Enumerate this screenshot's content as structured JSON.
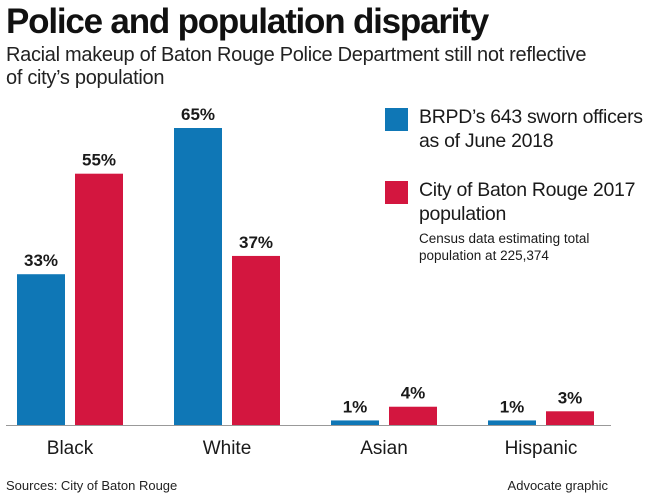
{
  "colors": {
    "officers": "#0f77b6",
    "population": "#d3163f",
    "axis": "#999999"
  },
  "header": {
    "title": "Police and population disparity",
    "subtitle": "Racial makeup of Baton Rouge Police Department still not reflective of city’s population"
  },
  "legend": {
    "series1_label": "BRPD’s 643 sworn officers as of June 2018",
    "series2_label": "City of Baton Rouge 2017 population",
    "series2_note": "Census data estimating total population at 225,374"
  },
  "footer": {
    "source": "Sources: City of Baton Rouge",
    "credit": "Advocate graphic"
  },
  "chart_data": {
    "type": "bar",
    "categories": [
      "Black",
      "White",
      "Asian",
      "Hispanic"
    ],
    "series": [
      {
        "name": "BRPD’s 643 sworn officers as of June 2018",
        "values": [
          33,
          65,
          1,
          1
        ],
        "labels": [
          "33%",
          "65%",
          "1%",
          "1%"
        ]
      },
      {
        "name": "City of Baton Rouge 2017 population",
        "values": [
          55,
          37,
          4,
          3
        ],
        "labels": [
          "55%",
          "37%",
          "4%",
          "3%"
        ]
      }
    ],
    "ylim": [
      0,
      65
    ]
  }
}
